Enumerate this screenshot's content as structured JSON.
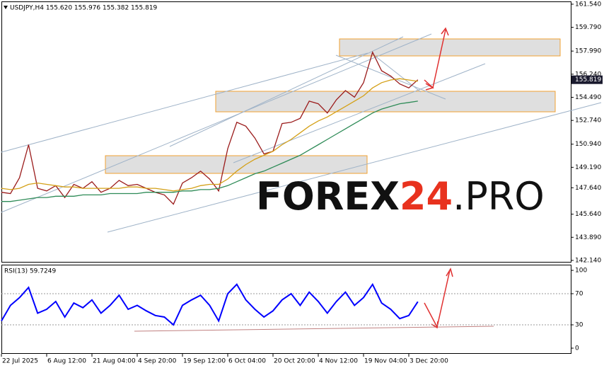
{
  "chart_data": [
    {
      "type": "line",
      "title": "USDJPY,H4  155.620 155.976 155.382 155.819",
      "categories": [
        "22 Jul 2025",
        null,
        null,
        null,
        null,
        "6 Aug 12:00",
        null,
        null,
        null,
        null,
        "21 Aug 04:00",
        null,
        null,
        null,
        null,
        "4 Sep 20:00",
        null,
        null,
        null,
        null,
        "19 Sep 12:00",
        null,
        null,
        null,
        null,
        "6 Oct 04:00",
        null,
        null,
        null,
        null,
        "20 Oct 20:00",
        null,
        null,
        null,
        null,
        "4 Nov 12:00",
        null,
        null,
        null,
        null,
        "19 Nov 04:00",
        null,
        null,
        null,
        null,
        "3 Dec 20:00",
        null
      ],
      "series": [
        {
          "color": "#9b1c1c",
          "values": [
            147.3,
            147.2,
            148.4,
            150.9,
            147.6,
            147.4,
            147.8,
            146.9,
            147.9,
            147.6,
            148.1,
            147.3,
            147.6,
            148.2,
            147.8,
            147.9,
            147.6,
            147.3,
            147.1,
            146.4,
            148.0,
            148.4,
            148.9,
            148.3,
            147.4,
            150.6,
            152.6,
            152.3,
            151.4,
            150.2,
            150.4,
            152.5,
            152.6,
            152.9,
            154.2,
            154.0,
            153.3,
            154.3,
            155.0,
            154.5,
            155.6,
            157.9,
            156.5,
            156.1,
            155.5,
            155.2,
            155.819
          ]
        },
        {
          "color": "#d4a017",
          "values": [
            147.6,
            147.5,
            147.6,
            147.9,
            148.0,
            147.9,
            147.8,
            147.7,
            147.7,
            147.6,
            147.6,
            147.6,
            147.6,
            147.6,
            147.7,
            147.7,
            147.6,
            147.6,
            147.5,
            147.4,
            147.5,
            147.6,
            147.8,
            147.9,
            147.9,
            148.3,
            148.9,
            149.4,
            149.8,
            150.1,
            150.4,
            150.9,
            151.3,
            151.8,
            152.3,
            152.7,
            153.0,
            153.4,
            153.8,
            154.2,
            154.6,
            155.2,
            155.6,
            155.8,
            155.9,
            155.8,
            155.7
          ]
        },
        {
          "color": "#2e8b57",
          "values": [
            146.6,
            146.6,
            146.7,
            146.8,
            146.9,
            146.9,
            147.0,
            147.0,
            147.0,
            147.1,
            147.1,
            147.1,
            147.2,
            147.2,
            147.2,
            147.2,
            147.3,
            147.3,
            147.3,
            147.3,
            147.4,
            147.4,
            147.5,
            147.5,
            147.6,
            147.8,
            148.1,
            148.4,
            148.7,
            148.9,
            149.2,
            149.5,
            149.8,
            150.1,
            150.5,
            150.9,
            151.3,
            151.7,
            152.1,
            152.5,
            152.9,
            153.3,
            153.6,
            153.8,
            154.0,
            154.1,
            154.2
          ]
        }
      ],
      "ylim": [
        142.03,
        161.75
      ],
      "yticks": [
        {
          "value": 161.54,
          "label": "161.540"
        },
        {
          "value": 159.79,
          "label": "159.790"
        },
        {
          "value": 157.99,
          "label": "157.990"
        },
        {
          "value": 156.24,
          "label": "156.240"
        },
        {
          "value": 154.49,
          "label": "154.490"
        },
        {
          "value": 152.74,
          "label": "152.740"
        },
        {
          "value": 150.94,
          "label": "150.940"
        },
        {
          "value": 149.19,
          "label": "149.190"
        },
        {
          "value": 147.64,
          "label": "147.640"
        },
        {
          "value": 145.64,
          "label": "145.640"
        },
        {
          "value": 143.89,
          "label": "143.890"
        },
        {
          "value": 142.14,
          "label": "142.140"
        }
      ]
    },
    {
      "type": "line",
      "title": "RSI(13) 59.7249",
      "series": [
        {
          "color": "#0000ff",
          "values": [
            35,
            55,
            65,
            78,
            45,
            50,
            60,
            40,
            58,
            52,
            62,
            45,
            55,
            68,
            50,
            55,
            48,
            42,
            40,
            30,
            55,
            62,
            68,
            55,
            35,
            70,
            82,
            62,
            50,
            40,
            48,
            62,
            70,
            55,
            72,
            60,
            45,
            60,
            72,
            55,
            65,
            82,
            58,
            50,
            38,
            42,
            59.7249
          ]
        }
      ],
      "ylim": [
        -7.3,
        107.3
      ],
      "yticks": [
        100,
        70,
        30,
        0
      ]
    }
  ],
  "watermark": {
    "parts": [
      "FOREX",
      "24",
      ".PRO"
    ]
  }
}
